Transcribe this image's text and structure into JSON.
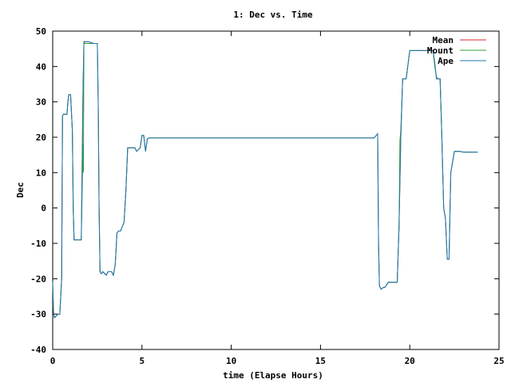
{
  "chart_data": {
    "type": "line",
    "title": "1: Dec vs. Time",
    "xlabel": "time (Elapse Hours)",
    "ylabel": "Dec",
    "xlim": [
      0,
      25
    ],
    "ylim": [
      -40,
      50
    ],
    "xticks": [
      0,
      5,
      10,
      15,
      20,
      25
    ],
    "yticks": [
      -40,
      -30,
      -20,
      -10,
      0,
      10,
      20,
      30,
      40,
      50
    ],
    "xtick_labels": [
      "0",
      "5",
      "10",
      "15",
      "20",
      "25"
    ],
    "ytick_labels": [
      "-40",
      "-30",
      "-20",
      "-10",
      "0",
      "10",
      "20",
      "30",
      "40",
      "50"
    ],
    "grid": false,
    "legend_position": "top-right",
    "series": [
      {
        "name": "Mean",
        "color": "#d62728",
        "x": [
          0,
          0.05,
          0.1,
          0.3,
          0.4,
          0.5,
          0.55,
          0.6,
          0.8,
          0.85,
          0.9,
          1.0,
          1.1,
          1.15,
          1.2,
          1.25,
          1.4,
          1.6,
          1.7,
          1.75,
          1.8,
          2.0,
          2.3,
          2.5,
          2.55,
          2.6,
          2.65,
          2.7,
          2.75,
          2.8,
          3.0,
          3.1,
          3.3,
          3.4,
          3.5,
          3.6,
          3.7,
          3.8,
          4.0,
          4.1,
          4.2,
          4.3,
          4.6,
          4.7,
          4.9,
          5.0,
          5.1,
          5.2,
          5.3,
          5.4,
          5.5,
          5.6,
          6.0,
          10,
          15,
          18,
          18.2,
          18.25,
          18.3,
          18.4,
          18.5,
          18.6,
          18.8,
          19.0,
          19.3,
          19.4,
          19.5,
          19.6,
          19.8,
          20.0,
          20.5,
          21.0,
          21.3,
          21.4,
          21.5,
          21.6,
          21.7,
          21.8,
          21.9,
          22.0,
          22.1,
          22.2,
          22.3,
          22.5,
          22.8,
          23.0,
          23.5,
          23.8
        ],
        "y": [
          -21,
          -30,
          -31,
          -30,
          -30,
          -20,
          26,
          26.5,
          26.5,
          30,
          32,
          32,
          22,
          0,
          -9,
          -9,
          -9,
          -9,
          34,
          47,
          47,
          47,
          46.5,
          46.5,
          30,
          0,
          -18,
          -18.5,
          -18.5,
          -18,
          -19,
          -18,
          -18,
          -19,
          -16,
          -7,
          -6.5,
          -6.5,
          -4,
          5,
          17,
          17,
          17,
          16,
          17,
          20.5,
          20.5,
          16,
          19.5,
          19.8,
          19.8,
          19.8,
          19.8,
          19.8,
          19.8,
          19.8,
          21,
          -10,
          -22,
          -23,
          -22.5,
          -22.5,
          -21,
          -21,
          -21,
          -5,
          20,
          36.5,
          36.5,
          44.5,
          44.5,
          44.5,
          44.5,
          41,
          36.5,
          36.5,
          36.5,
          20,
          0,
          -3,
          -14.5,
          -14.5,
          10,
          16,
          16,
          15.8,
          15.8,
          15.8
        ]
      },
      {
        "name": "Mount",
        "color": "#2ca02c",
        "x": [
          0,
          0.05,
          0.1,
          0.3,
          0.4,
          0.5,
          0.55,
          0.6,
          0.8,
          0.85,
          0.9,
          1.0,
          1.1,
          1.15,
          1.2,
          1.25,
          1.4,
          1.6,
          1.7,
          1.72,
          1.75,
          1.8,
          2.0,
          2.3,
          2.5,
          2.55,
          2.6,
          2.65,
          2.7,
          2.75,
          2.8,
          3.0,
          3.1,
          3.3,
          3.4,
          3.5,
          3.6,
          3.7,
          3.8,
          4.0,
          4.1,
          4.2,
          4.3,
          4.6,
          4.7,
          4.9,
          5.0,
          5.1,
          5.2,
          5.3,
          5.4,
          5.5,
          5.6,
          6.0,
          10,
          15,
          18,
          18.2,
          18.25,
          18.3,
          18.4,
          18.5,
          18.6,
          18.8,
          19.0,
          19.3,
          19.4,
          19.45,
          19.5,
          19.6,
          19.8,
          20.0,
          20.5,
          21.0,
          21.3,
          21.4,
          21.5,
          21.6,
          21.7,
          21.8,
          21.9,
          22.0,
          22.1,
          22.2,
          22.3,
          22.5,
          22.8,
          23.0,
          23.5,
          23.8
        ],
        "y": [
          -21,
          -30,
          -31,
          -30,
          -30,
          -20,
          26,
          26.5,
          26.5,
          30,
          32,
          32,
          22,
          0,
          -9,
          -9,
          -9,
          -9,
          18,
          10,
          47,
          46.5,
          46.5,
          46.5,
          46.5,
          30,
          0,
          -18,
          -18.5,
          -18.5,
          -18,
          -19,
          -18,
          -18,
          -19,
          -16,
          -7,
          -6.5,
          -6.5,
          -4,
          5,
          17,
          17,
          17,
          16,
          17,
          20.5,
          20.5,
          16,
          19.5,
          19.8,
          19.8,
          19.8,
          19.8,
          19.8,
          19.8,
          19.8,
          21,
          -10,
          -22,
          -23,
          -22.5,
          -22.5,
          -21,
          -21,
          -21,
          -5,
          19,
          22,
          36.5,
          36.5,
          44.5,
          44.5,
          44.5,
          44.5,
          40,
          37,
          36.5,
          36.5,
          20,
          0,
          -3,
          -14.5,
          -14.5,
          10,
          16,
          16,
          15.8,
          15.8,
          15.8
        ]
      },
      {
        "name": "Ape",
        "color": "#1f77b4",
        "x": [
          0,
          0.05,
          0.1,
          0.3,
          0.4,
          0.5,
          0.55,
          0.6,
          0.8,
          0.85,
          0.9,
          1.0,
          1.1,
          1.15,
          1.2,
          1.25,
          1.4,
          1.6,
          1.7,
          1.75,
          1.8,
          2.0,
          2.3,
          2.5,
          2.55,
          2.6,
          2.65,
          2.7,
          2.75,
          2.8,
          3.0,
          3.1,
          3.3,
          3.4,
          3.5,
          3.6,
          3.7,
          3.8,
          4.0,
          4.1,
          4.2,
          4.3,
          4.6,
          4.7,
          4.9,
          5.0,
          5.1,
          5.2,
          5.3,
          5.4,
          5.5,
          5.6,
          6.0,
          10,
          15,
          18,
          18.2,
          18.25,
          18.3,
          18.4,
          18.5,
          18.6,
          18.8,
          19.0,
          19.3,
          19.4,
          19.5,
          19.6,
          19.8,
          20.0,
          20.5,
          21.0,
          21.3,
          21.4,
          21.5,
          21.6,
          21.7,
          21.8,
          21.9,
          22.0,
          22.1,
          22.2,
          22.3,
          22.5,
          22.8,
          23.0,
          23.5,
          23.8
        ],
        "y": [
          -21,
          -30,
          -31,
          -30,
          -30,
          -20,
          26,
          26.5,
          26.5,
          30,
          32,
          32,
          22,
          0,
          -9,
          -9,
          -9,
          -9,
          34,
          47,
          47,
          47,
          46.5,
          46.5,
          30,
          0,
          -18,
          -18.5,
          -18.5,
          -18,
          -19,
          -18,
          -18,
          -19,
          -16,
          -7,
          -6.5,
          -6.5,
          -4,
          5,
          17,
          17,
          17,
          16,
          17,
          20.5,
          20.5,
          16,
          19.5,
          19.8,
          19.8,
          19.8,
          19.8,
          19.8,
          19.8,
          19.8,
          21,
          -10,
          -22,
          -23,
          -22.5,
          -22.5,
          -21,
          -21,
          -21,
          -5,
          20,
          36.5,
          36.5,
          44.5,
          44.5,
          44.5,
          44.5,
          41,
          36.5,
          36.5,
          36.5,
          20,
          0,
          -3,
          -14.5,
          -14.5,
          10,
          16,
          16,
          15.8,
          15.8,
          15.8
        ]
      }
    ]
  }
}
